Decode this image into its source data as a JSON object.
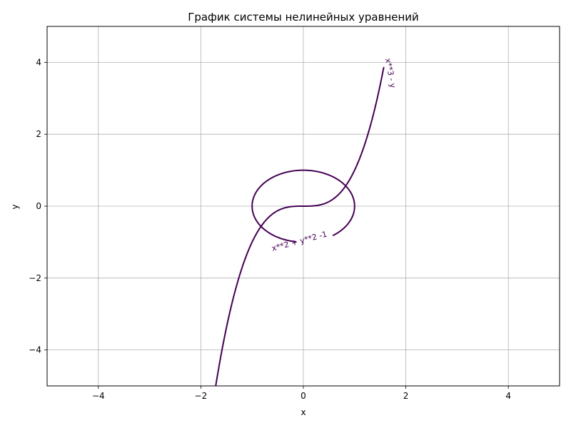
{
  "chart_data": {
    "type": "line",
    "title": "График системы нелинейных уравнений",
    "xlabel": "x",
    "ylabel": "y",
    "xlim": [
      -5,
      5
    ],
    "ylim": [
      -5,
      5
    ],
    "x_ticks": [
      -4,
      -2,
      0,
      2,
      4
    ],
    "y_ticks": [
      -4,
      -2,
      0,
      2,
      4
    ],
    "x_tick_labels": [
      "−4",
      "−2",
      "0",
      "2",
      "4"
    ],
    "y_tick_labels": [
      "−4",
      "−2",
      "0",
      "2",
      "4"
    ],
    "grid": true,
    "series": [
      {
        "name": "x**2 + y**2 -1",
        "expression": "x**2 + y**2 - 1 = 0",
        "color": "#440154",
        "label_at": [
          -0.6,
          -1.25
        ],
        "label_rotation_deg": 15,
        "t_range_deg": [
          -55,
          262
        ]
      },
      {
        "name": "x**3 - y",
        "expression": "x**3 - y = 0",
        "color": "#440154",
        "label_at": [
          1.6,
          4.1
        ],
        "label_rotation_deg": -80,
        "x_range": [
          -1.71,
          1.57
        ]
      }
    ]
  }
}
